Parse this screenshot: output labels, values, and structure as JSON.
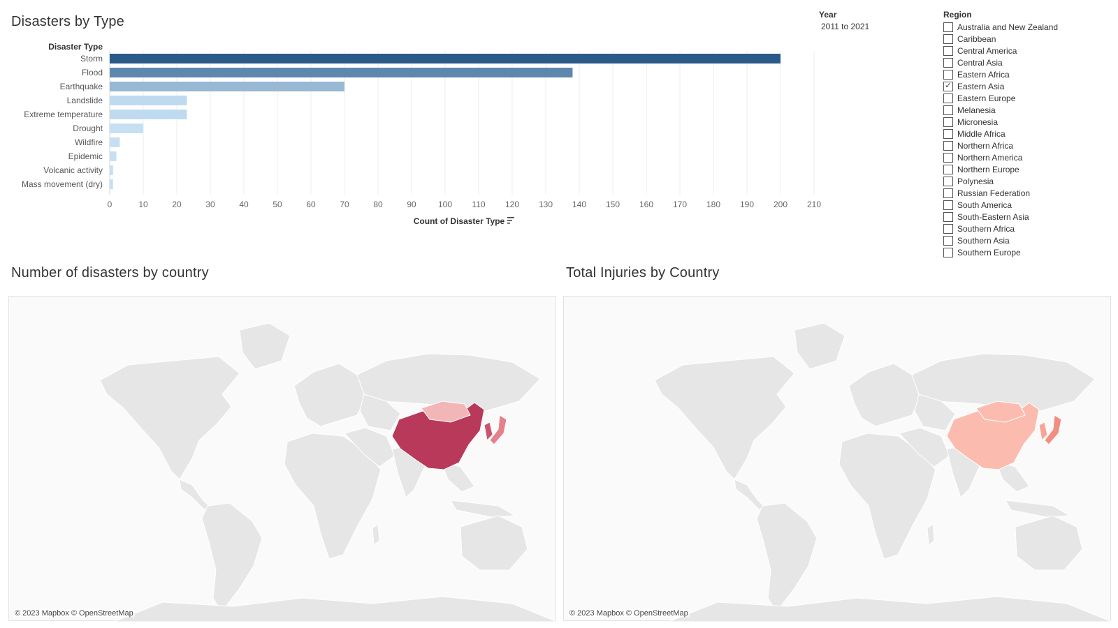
{
  "bar_panel": {
    "title": "Disasters by Type"
  },
  "chart_data": {
    "type": "bar",
    "orientation": "horizontal",
    "title": "Disasters by Type",
    "category_header": "Disaster Type",
    "xlabel": "Count of Disaster Type",
    "categories": [
      "Storm",
      "Flood",
      "Earthquake",
      "Landslide",
      "Extreme temperature",
      "Drought",
      "Wildfire",
      "Epidemic",
      "Volcanic activity",
      "Mass movement (dry)"
    ],
    "values": [
      200,
      138,
      70,
      23,
      23,
      10,
      3,
      2,
      1,
      1
    ],
    "xlim": [
      0,
      210
    ],
    "xticks": [
      0,
      10,
      20,
      30,
      40,
      50,
      60,
      70,
      80,
      90,
      100,
      110,
      120,
      130,
      140,
      150,
      160,
      170,
      180,
      190,
      200,
      210
    ],
    "grid": "vertical",
    "color_scale": {
      "low": "#c6e0f2",
      "high": "#2a5a8a"
    }
  },
  "filters": {
    "year": {
      "label": "Year",
      "value": "2011 to 2021"
    },
    "region": {
      "label": "Region",
      "items": [
        {
          "label": "Australia and New Zealand",
          "checked": false
        },
        {
          "label": "Caribbean",
          "checked": false
        },
        {
          "label": "Central America",
          "checked": false
        },
        {
          "label": "Central Asia",
          "checked": false
        },
        {
          "label": "Eastern Africa",
          "checked": false
        },
        {
          "label": "Eastern Asia",
          "checked": true
        },
        {
          "label": "Eastern Europe",
          "checked": false
        },
        {
          "label": "Melanesia",
          "checked": false
        },
        {
          "label": "Micronesia",
          "checked": false
        },
        {
          "label": "Middle Africa",
          "checked": false
        },
        {
          "label": "Northern Africa",
          "checked": false
        },
        {
          "label": "Northern America",
          "checked": false
        },
        {
          "label": "Northern Europe",
          "checked": false
        },
        {
          "label": "Polynesia",
          "checked": false
        },
        {
          "label": "Russian Federation",
          "checked": false
        },
        {
          "label": "South America",
          "checked": false
        },
        {
          "label": "South-Eastern Asia",
          "checked": false
        },
        {
          "label": "Southern Africa",
          "checked": false
        },
        {
          "label": "Southern Asia",
          "checked": false
        },
        {
          "label": "Southern Europe",
          "checked": false
        }
      ]
    }
  },
  "maps": [
    {
      "title": "Number of disasters by country",
      "attribution": "© 2023 Mapbox © OpenStreetMap",
      "highlight": {
        "China": "#b9395a",
        "Mongolia": "#f3b6b6",
        "Japan": "#e6808a",
        "Korea": "#c95470"
      }
    },
    {
      "title": "Total Injuries by Country",
      "attribution": "© 2023 Mapbox © OpenStreetMap",
      "highlight": {
        "China": "#fbbcaf",
        "Mongolia": "#fbbcaf",
        "Japan": "#f38d80",
        "Korea": "#f7a596"
      }
    }
  ],
  "colors": {
    "land": "#e6e6e6",
    "land_border": "#ffffff",
    "ocean": "#fafafa"
  }
}
